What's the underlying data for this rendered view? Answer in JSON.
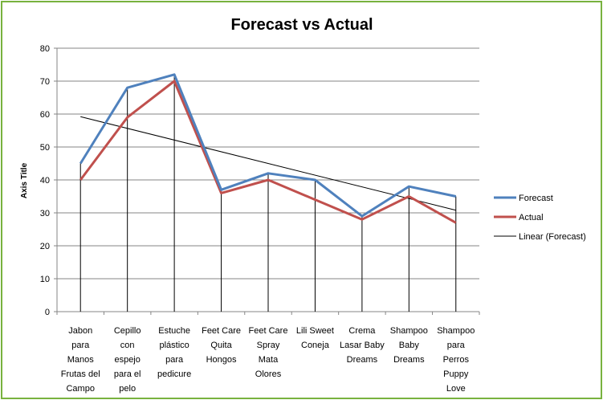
{
  "chart_data": {
    "type": "line",
    "title": "Forecast vs Actual",
    "xlabel": "",
    "ylabel": "Axis Title",
    "ylim": [
      0,
      80
    ],
    "yticks": [
      0,
      10,
      20,
      30,
      40,
      50,
      60,
      70,
      80
    ],
    "grid": "horizontal",
    "legend_position": "right",
    "categories": [
      [
        "Jabon",
        "para",
        "Manos",
        "Frutas del",
        "Campo"
      ],
      [
        "Cepillo",
        "con",
        "espejo",
        "para el",
        "pelo"
      ],
      [
        "Estuche",
        "plástico",
        "para",
        "pedicure"
      ],
      [
        "Feet Care",
        "Quita",
        "Hongos"
      ],
      [
        "Feet Care",
        "Spray",
        "Mata",
        "Olores"
      ],
      [
        "Lili Sweet",
        "Coneja"
      ],
      [
        "Crema",
        "Lasar Baby",
        "Dreams"
      ],
      [
        "Shampoo",
        "Baby",
        "Dreams"
      ],
      [
        "Shampoo",
        "para",
        "Perros",
        "Puppy",
        "Love"
      ]
    ],
    "series": [
      {
        "name": "Forecast",
        "color": "#4f81bd",
        "values": [
          45,
          68,
          72,
          37,
          42,
          40,
          29,
          38,
          35
        ]
      },
      {
        "name": "Actual",
        "color": "#c0504d",
        "values": [
          40,
          59,
          70,
          36,
          40,
          34,
          28,
          35,
          27
        ]
      }
    ],
    "trendline": {
      "name": "Linear (Forecast)",
      "color": "#000000",
      "of_series": "Forecast",
      "start": 59.2,
      "end": 30.8
    }
  }
}
